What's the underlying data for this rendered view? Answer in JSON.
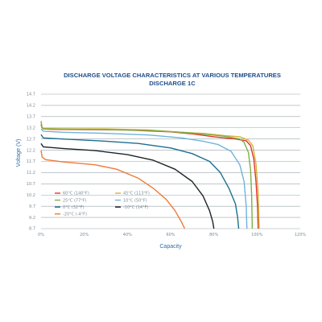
{
  "chart_data": {
    "type": "line",
    "title": "DISCHARGE VOLTAGE CHARACTERISTICS AT VARIOUS TEMPERATURES",
    "subtitle": "DISCHARGE 1C",
    "xlabel": "Capacity",
    "ylabel": "Voltage (V)",
    "xlim": [
      0,
      120
    ],
    "ylim": [
      8.7,
      14.7
    ],
    "x_ticks": [
      "0%",
      "20%",
      "40%",
      "60%",
      "80%",
      "100%",
      "120%"
    ],
    "y_ticks": [
      "8.7",
      "9.2",
      "9.7",
      "10.2",
      "10.7",
      "11.2",
      "11.7",
      "12.2",
      "12.7",
      "13.2",
      "13.7",
      "14.2",
      "14.7"
    ],
    "grid": "horizontal",
    "legend_position": "bottom-left",
    "series": [
      {
        "name": "60°C (140°F)",
        "color": "#e0362c",
        "points": [
          [
            0,
            13.35
          ],
          [
            0.5,
            13.2
          ],
          [
            1,
            13.15
          ],
          [
            5,
            13.13
          ],
          [
            20,
            13.12
          ],
          [
            40,
            13.1
          ],
          [
            60,
            13.02
          ],
          [
            70,
            12.93
          ],
          [
            80,
            12.8
          ],
          [
            90,
            12.7
          ],
          [
            95,
            12.62
          ],
          [
            97,
            12.4
          ],
          [
            98.5,
            11.8
          ],
          [
            99.5,
            10.8
          ],
          [
            100.2,
            9.7
          ],
          [
            100.5,
            8.7
          ]
        ]
      },
      {
        "name": "45°C (113°F)",
        "color": "#d7b23a",
        "points": [
          [
            0,
            13.25
          ],
          [
            1,
            13.17
          ],
          [
            10,
            13.16
          ],
          [
            30,
            13.15
          ],
          [
            50,
            13.1
          ],
          [
            65,
            13.0
          ],
          [
            75,
            12.95
          ],
          [
            85,
            12.85
          ],
          [
            92,
            12.8
          ],
          [
            96,
            12.65
          ],
          [
            98,
            12.4
          ],
          [
            99.5,
            11.6
          ],
          [
            100.5,
            10.3
          ],
          [
            101,
            8.7
          ]
        ]
      },
      {
        "name": "25°C (77°F)",
        "color": "#7db04a",
        "points": [
          [
            0,
            13.5
          ],
          [
            0.4,
            13.25
          ],
          [
            1,
            13.15
          ],
          [
            10,
            13.14
          ],
          [
            30,
            13.12
          ],
          [
            50,
            13.08
          ],
          [
            65,
            13.0
          ],
          [
            75,
            12.92
          ],
          [
            85,
            12.82
          ],
          [
            92,
            12.7
          ],
          [
            94,
            12.55
          ],
          [
            96,
            12.1
          ],
          [
            97,
            11.3
          ],
          [
            97.5,
            10.2
          ],
          [
            97.8,
            8.7
          ]
        ]
      },
      {
        "name": "10°C (50°F)",
        "color": "#6fb3da",
        "points": [
          [
            0,
            13.15
          ],
          [
            1,
            13.05
          ],
          [
            10,
            13.0
          ],
          [
            30,
            12.95
          ],
          [
            50,
            12.88
          ],
          [
            65,
            12.75
          ],
          [
            75,
            12.6
          ],
          [
            82,
            12.45
          ],
          [
            88,
            12.15
          ],
          [
            92,
            11.55
          ],
          [
            94,
            10.8
          ],
          [
            95,
            9.7
          ],
          [
            95.3,
            8.7
          ]
        ]
      },
      {
        "name": "0°C (32°F)",
        "color": "#1c6f8e",
        "points": [
          [
            0,
            12.9
          ],
          [
            1,
            12.75
          ],
          [
            10,
            12.7
          ],
          [
            30,
            12.6
          ],
          [
            45,
            12.5
          ],
          [
            60,
            12.3
          ],
          [
            70,
            12.05
          ],
          [
            78,
            11.7
          ],
          [
            83,
            11.2
          ],
          [
            87,
            10.5
          ],
          [
            90,
            9.8
          ],
          [
            91,
            9.2
          ],
          [
            91.5,
            8.7
          ]
        ]
      },
      {
        "name": "-10°C (14°F)",
        "color": "#1d2327",
        "points": [
          [
            0,
            12.5
          ],
          [
            1,
            12.35
          ],
          [
            10,
            12.28
          ],
          [
            25,
            12.18
          ],
          [
            40,
            12.0
          ],
          [
            52,
            11.75
          ],
          [
            62,
            11.35
          ],
          [
            70,
            10.8
          ],
          [
            75,
            10.15
          ],
          [
            78,
            9.5
          ],
          [
            79.5,
            9.0
          ],
          [
            80,
            8.7
          ]
        ]
      },
      {
        "name": "-20°C (-4°F)",
        "color": "#ef7a3a",
        "points": [
          [
            0,
            12.2
          ],
          [
            0.5,
            11.9
          ],
          [
            2,
            11.78
          ],
          [
            10,
            11.68
          ],
          [
            25,
            11.55
          ],
          [
            35,
            11.35
          ],
          [
            45,
            10.95
          ],
          [
            52,
            10.5
          ],
          [
            58,
            10.0
          ],
          [
            62,
            9.5
          ],
          [
            65,
            9.0
          ],
          [
            66.5,
            8.7
          ]
        ]
      }
    ]
  }
}
